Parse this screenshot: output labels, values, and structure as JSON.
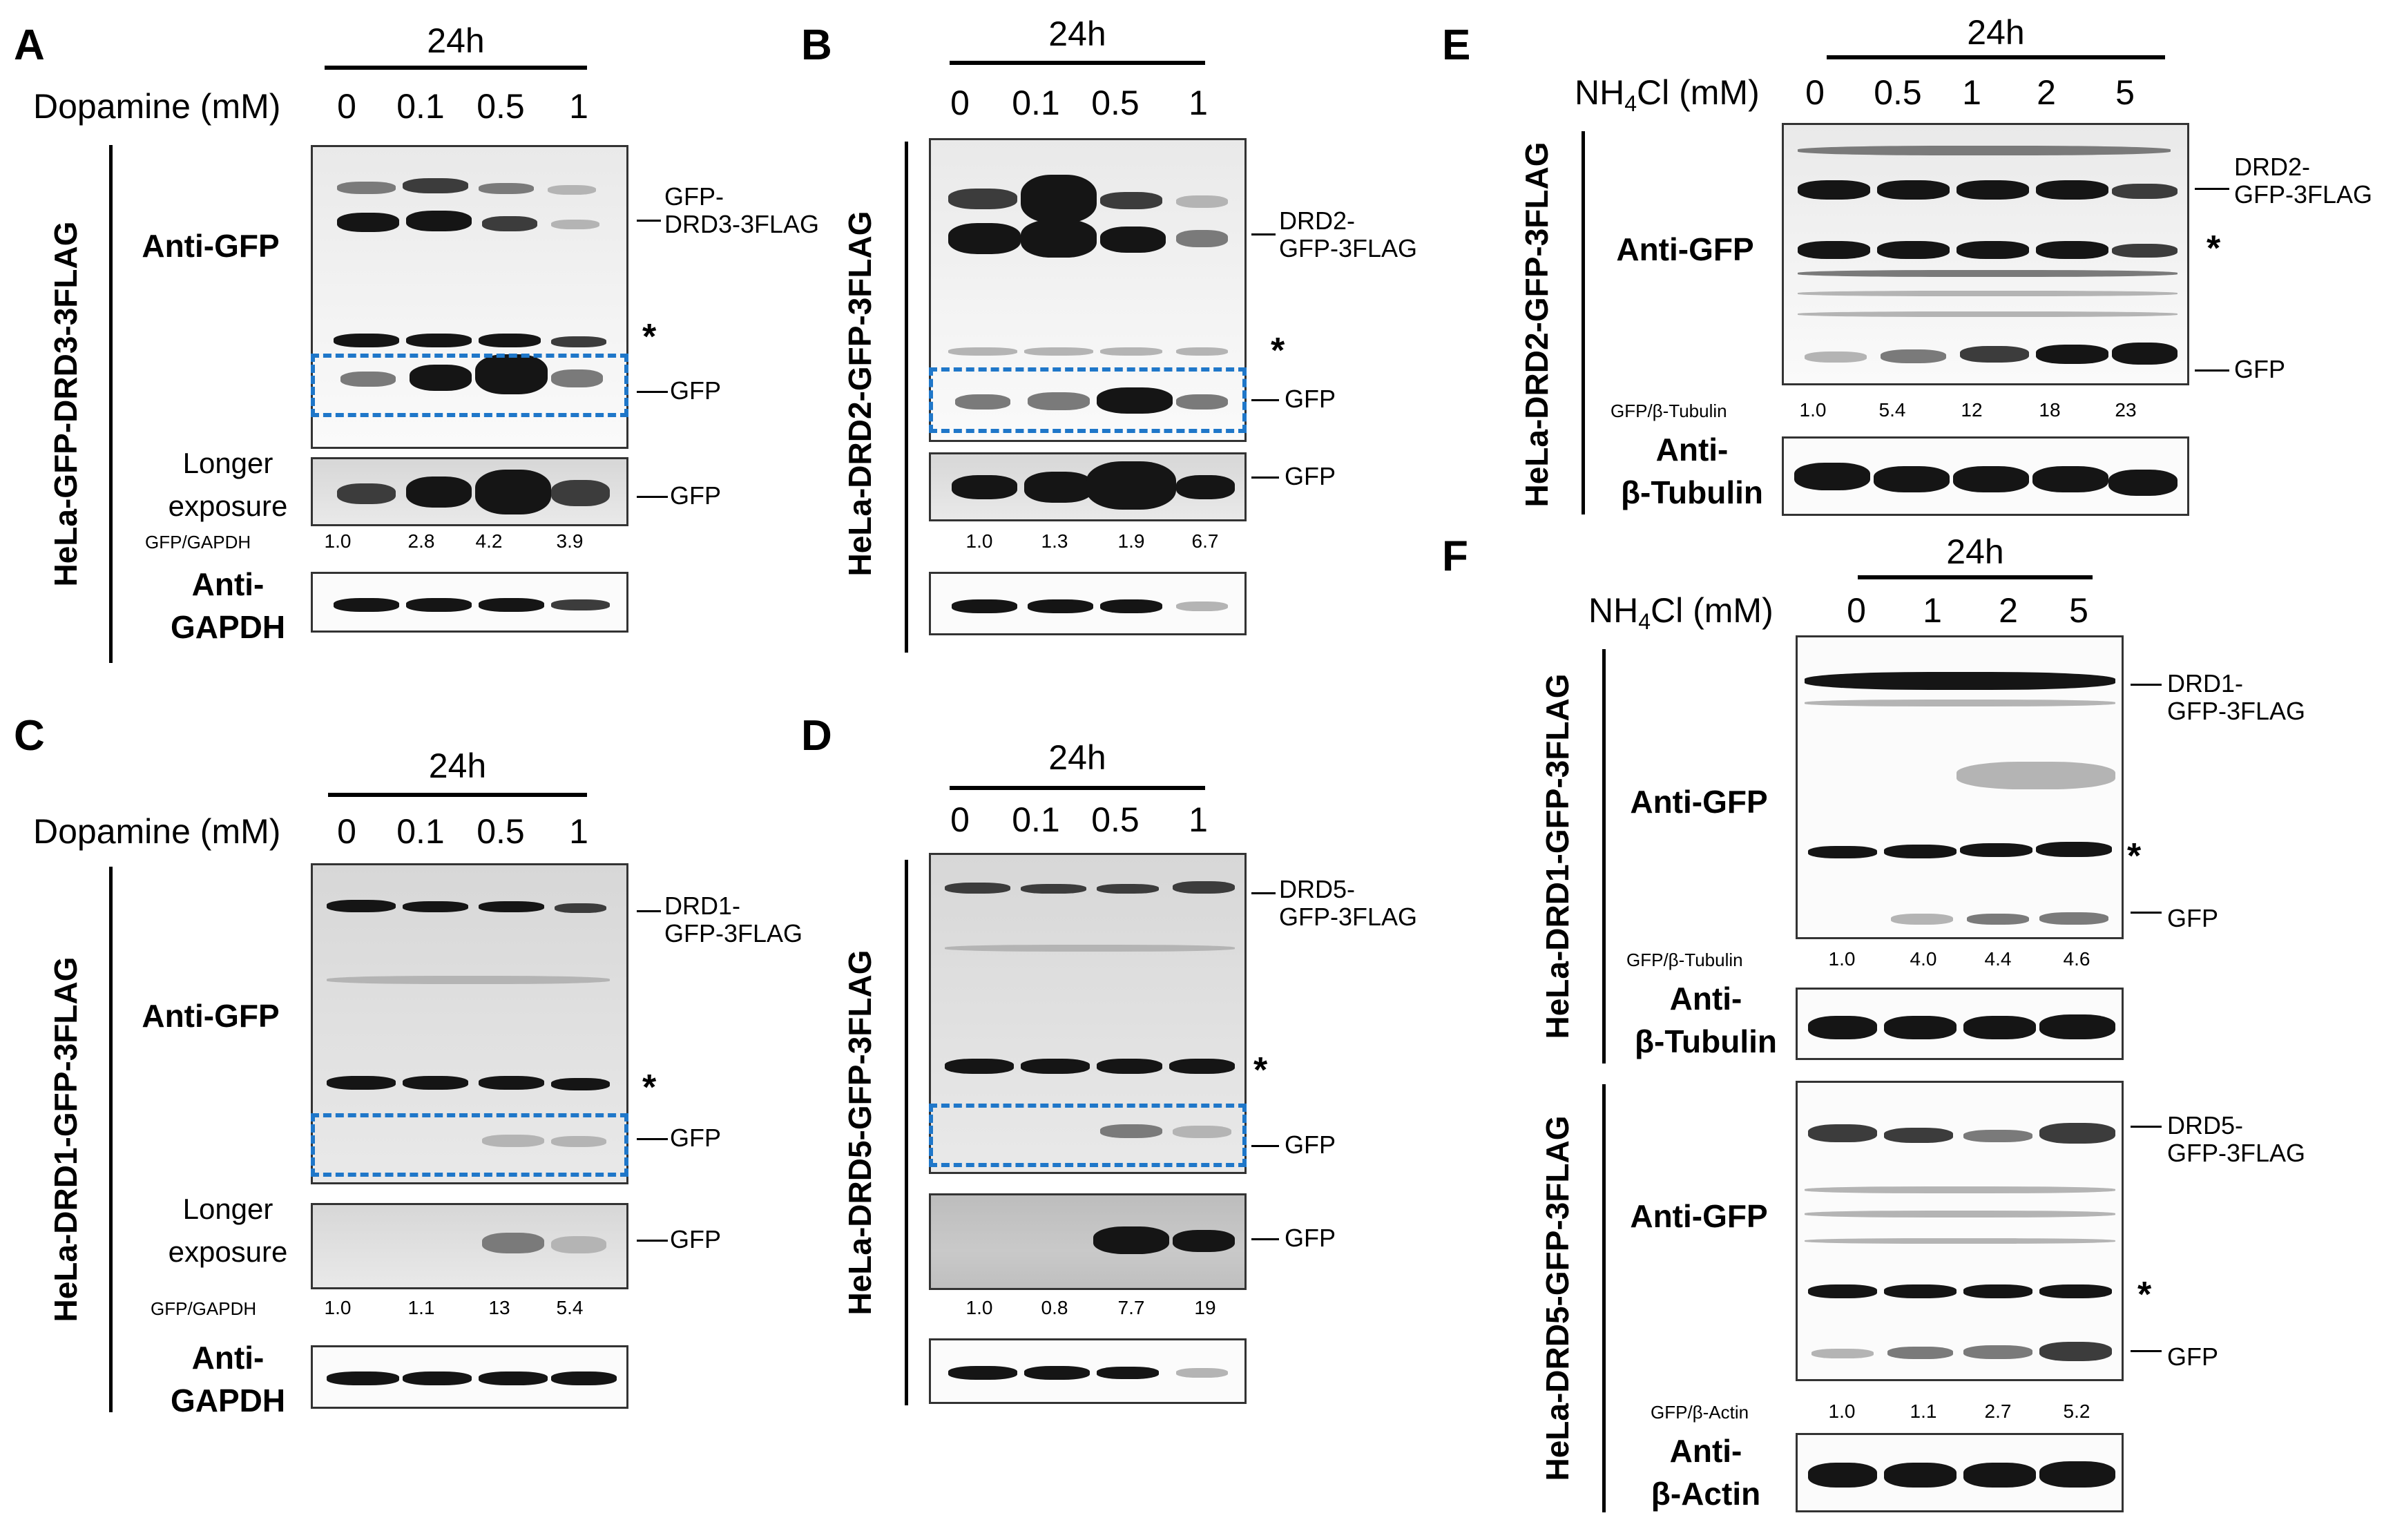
{
  "panel_A": {
    "letter": "A",
    "time": "24h",
    "treatment": "Dopamine (mM)",
    "lanes": [
      "0",
      "0.1",
      "0.5",
      "1"
    ],
    "cell_line": "HeLa-GFP-DRD3-3FLAG",
    "blot_title": "Anti-GFP",
    "band_label": "GFP-\nDRD3-3FLAG",
    "gfp_label": "GFP",
    "longer_title": "Longer\nexposure",
    "longer_gfp": "GFP",
    "ratio_label": "GFP/GAPDH",
    "ratios": [
      "1.0",
      "2.8",
      "4.2",
      "3.9"
    ],
    "loading_title": "Anti-\nGAPDH",
    "star": "*"
  },
  "panel_B": {
    "letter": "B",
    "time": "24h",
    "lanes": [
      "0",
      "0.1",
      "0.5",
      "1"
    ],
    "cell_line": "HeLa-DRD2-GFP-3FLAG",
    "band_label": "DRD2-\nGFP-3FLAG",
    "gfp_label": "GFP",
    "longer_gfp": "GFP",
    "ratios": [
      "1.0",
      "1.3",
      "1.9",
      "6.7"
    ],
    "star": "*"
  },
  "panel_C": {
    "letter": "C",
    "time": "24h",
    "treatment": "Dopamine (mM)",
    "lanes": [
      "0",
      "0.1",
      "0.5",
      "1"
    ],
    "cell_line": "HeLa-DRD1-GFP-3FLAG",
    "blot_title": "Anti-GFP",
    "band_label": "DRD1-\nGFP-3FLAG",
    "gfp_label": "GFP",
    "longer_title": "Longer\nexposure",
    "longer_gfp": "GFP",
    "ratio_label": "GFP/GAPDH",
    "ratios": [
      "1.0",
      "1.1",
      "13",
      "5.4"
    ],
    "loading_title": "Anti-\nGAPDH",
    "star": "*"
  },
  "panel_D": {
    "letter": "D",
    "time": "24h",
    "lanes": [
      "0",
      "0.1",
      "0.5",
      "1"
    ],
    "cell_line": "HeLa-DRD5-GFP-3FLAG",
    "band_label": "DRD5-\nGFP-3FLAG",
    "gfp_label": "GFP",
    "longer_gfp": "GFP",
    "ratios": [
      "1.0",
      "0.8",
      "7.7",
      "19"
    ],
    "star": "*"
  },
  "panel_E": {
    "letter": "E",
    "time": "24h",
    "treatment_prefix": "NH",
    "treatment_sub": "4",
    "treatment_suffix": "Cl (mM)",
    "lanes": [
      "0",
      "0.5",
      "1",
      "2",
      "5"
    ],
    "cell_line": "HeLa-DRD2-GFP-3FLAG",
    "blot_title": "Anti-GFP",
    "band_label": "DRD2-\nGFP-3FLAG",
    "gfp_label": "GFP",
    "ratio_label": "GFP/β-Tubulin",
    "ratios": [
      "1.0",
      "5.4",
      "12",
      "18",
      "23"
    ],
    "loading_title": "Anti-\nβ-Tubulin",
    "star": "*"
  },
  "panel_F": {
    "letter": "F",
    "time": "24h",
    "treatment_prefix": "NH",
    "treatment_sub": "4",
    "treatment_suffix": "Cl (mM)",
    "lanes": [
      "0",
      "1",
      "2",
      "5"
    ],
    "top": {
      "cell_line": "HeLa-DRD1-GFP-3FLAG",
      "blot_title": "Anti-GFP",
      "band_label": "DRD1-\nGFP-3FLAG",
      "gfp_label": "GFP",
      "ratio_label": "GFP/β-Tubulin",
      "ratios": [
        "1.0",
        "4.0",
        "4.4",
        "4.6"
      ],
      "loading_title": "Anti-\nβ-Tubulin",
      "star": "*"
    },
    "bottom": {
      "cell_line": "HeLa-DRD5-GFP-3FLAG",
      "blot_title": "Anti-GFP",
      "band_label": "DRD5-\nGFP-3FLAG",
      "gfp_label": "GFP",
      "ratio_label": "GFP/β-Actin",
      "ratios": [
        "1.0",
        "1.1",
        "2.7",
        "5.2"
      ],
      "loading_title": "Anti-\nβ-Actin",
      "star": "*"
    }
  }
}
